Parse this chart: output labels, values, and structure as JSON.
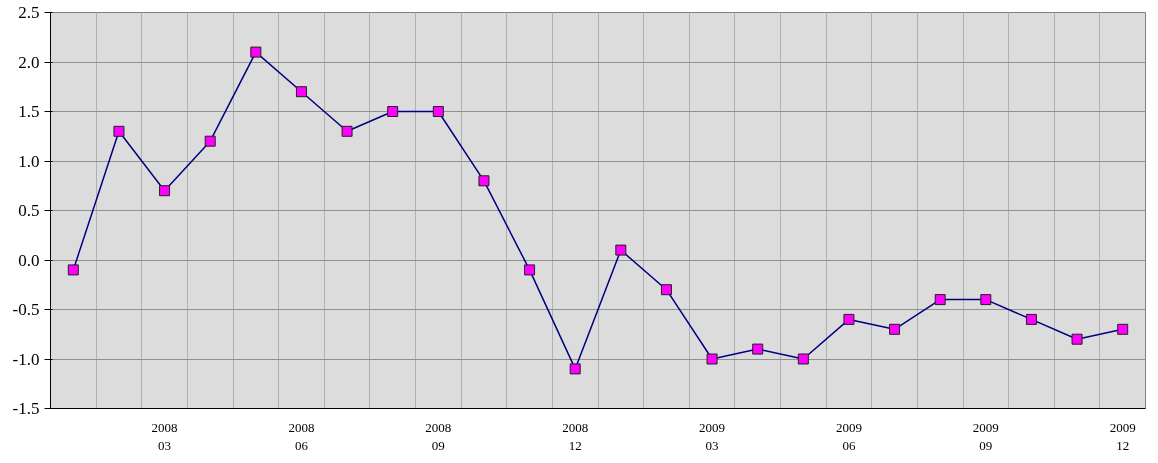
{
  "chart_data": {
    "type": "line",
    "categories": [
      null,
      null,
      "2008\n03",
      null,
      null,
      "2008\n06",
      null,
      null,
      "2008\n09",
      null,
      null,
      "2008\n12",
      null,
      null,
      "2009\n03",
      null,
      null,
      "2009\n06",
      null,
      null,
      "2009\n09",
      null,
      null,
      "2009\n12"
    ],
    "series": [
      {
        "color": "#000080",
        "values": [
          -0.1,
          1.3,
          0.7,
          1.2,
          2.1,
          1.7,
          1.3,
          1.5,
          1.5,
          0.8,
          -0.1,
          -1.1,
          0.1,
          -0.3,
          -1.0,
          -0.9,
          -1.0,
          -0.6,
          -0.7,
          -0.4,
          -0.4,
          -0.6,
          -0.8,
          -0.7
        ]
      }
    ],
    "ylim": [
      -1.5,
      2.5
    ],
    "yticks": [
      {
        "value": -1.5,
        "label": "-1.5"
      },
      {
        "value": -1.0,
        "label": "-1.0"
      },
      {
        "value": -0.5,
        "label": "-0.5"
      },
      {
        "value": 0.0,
        "label": "0.0"
      },
      {
        "value": 0.5,
        "label": "0.5"
      },
      {
        "value": 1.0,
        "label": "1.0"
      },
      {
        "value": 1.5,
        "label": "1.5"
      },
      {
        "value": 2.0,
        "label": "2.0"
      },
      {
        "value": 2.5,
        "label": "2.5"
      }
    ],
    "grid": true,
    "marker": "square",
    "line_style": "solid"
  }
}
